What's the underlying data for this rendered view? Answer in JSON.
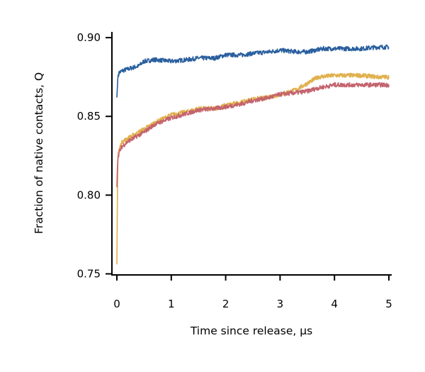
{
  "chart_data": {
    "type": "line",
    "title": "",
    "xlabel": "Time since release, μs",
    "ylabel": "Fraction of native contacts, Q",
    "xlim": [
      0,
      5
    ],
    "ylim": [
      0.75,
      0.905
    ],
    "xticks": [
      "0",
      "1",
      "2",
      "3",
      "4",
      "5"
    ],
    "yticks": [
      "0.75",
      "0.80",
      "0.85",
      "0.90"
    ],
    "grid": false,
    "legend": "none",
    "series": [
      {
        "color": "#2a5f9e",
        "x": [
          0,
          0.02,
          0.05,
          0.1,
          0.2,
          0.3,
          0.4,
          0.5,
          0.7,
          1.0,
          1.3,
          1.5,
          1.8,
          2.0,
          2.3,
          2.5,
          2.8,
          3.0,
          3.3,
          3.5,
          3.8,
          4.0,
          4.3,
          4.5,
          4.8,
          5.0
        ],
        "y": [
          0.862,
          0.876,
          0.878,
          0.879,
          0.88,
          0.881,
          0.882,
          0.885,
          0.886,
          0.885,
          0.886,
          0.887,
          0.887,
          0.889,
          0.889,
          0.89,
          0.891,
          0.892,
          0.891,
          0.891,
          0.893,
          0.893,
          0.893,
          0.893,
          0.894,
          0.894
        ]
      },
      {
        "color": "#e0b04c",
        "x": [
          0,
          0.01,
          0.02,
          0.05,
          0.1,
          0.2,
          0.3,
          0.5,
          0.7,
          1.0,
          1.3,
          1.5,
          1.8,
          2.0,
          2.3,
          2.5,
          2.8,
          3.0,
          3.3,
          3.5,
          3.7,
          4.0,
          4.3,
          4.5,
          4.8,
          5.0
        ],
        "y": [
          0.756,
          0.8,
          0.826,
          0.83,
          0.834,
          0.836,
          0.838,
          0.842,
          0.846,
          0.851,
          0.853,
          0.855,
          0.855,
          0.857,
          0.859,
          0.861,
          0.862,
          0.864,
          0.867,
          0.871,
          0.875,
          0.876,
          0.876,
          0.876,
          0.875,
          0.875
        ]
      },
      {
        "color": "#c4636e",
        "x": [
          0,
          0.01,
          0.02,
          0.05,
          0.1,
          0.2,
          0.3,
          0.5,
          0.7,
          1.0,
          1.3,
          1.5,
          1.8,
          2.0,
          2.3,
          2.5,
          2.8,
          3.0,
          3.3,
          3.5,
          3.7,
          4.0,
          4.3,
          4.5,
          4.8,
          5.0
        ],
        "y": [
          0.805,
          0.818,
          0.824,
          0.828,
          0.831,
          0.834,
          0.836,
          0.84,
          0.845,
          0.849,
          0.852,
          0.854,
          0.855,
          0.856,
          0.858,
          0.86,
          0.862,
          0.864,
          0.865,
          0.866,
          0.868,
          0.87,
          0.87,
          0.87,
          0.87,
          0.87
        ]
      }
    ]
  }
}
